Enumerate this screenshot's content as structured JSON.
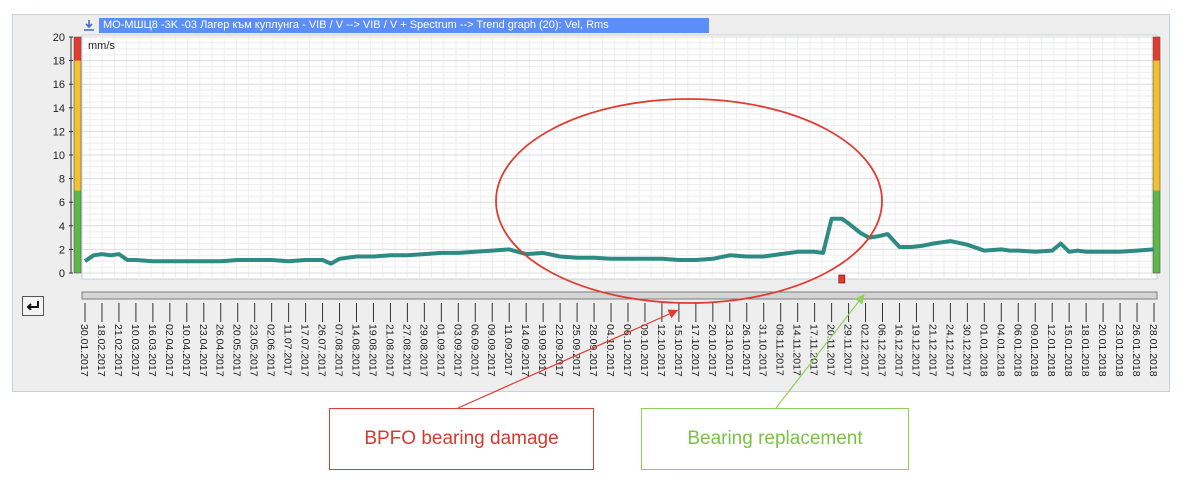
{
  "window": {
    "title": "MO-MШЦ8 -3K -03 Лагер към куплунга - VIB / V --> VIB / V + Spectrum --> Trend graph (20): Vel, Rms"
  },
  "icons": {
    "download": "download-icon",
    "back": "undo-arrow-icon"
  },
  "colors": {
    "series": "#2e8b84",
    "alarm_red": "#e43a2e",
    "alarm_yellow": "#f2c12e",
    "alarm_green": "#5cb849",
    "ellipse": "#e03c31",
    "bpfo_arrow": "#e03c31",
    "replacement_arrow": "#8fd058",
    "marker": "#e43a2e"
  },
  "annotations": {
    "bpfo": "BPFO bearing damage",
    "replacement": "Bearing replacement"
  },
  "chart_data": {
    "type": "line",
    "title": "",
    "xlabel": "",
    "ylabel": "mm/s",
    "ylim": [
      0,
      20
    ],
    "y_ticks": [
      0,
      2,
      4,
      6,
      8,
      10,
      12,
      14,
      16,
      18,
      20
    ],
    "grid": true,
    "alarm_levels": [
      {
        "color": "green",
        "from": 0,
        "to": 7
      },
      {
        "color": "yellow",
        "from": 7,
        "to": 18
      },
      {
        "color": "red",
        "from": 18,
        "to": 20
      }
    ],
    "x_tick_labels": [
      "30.01.2017",
      "18.02.2017",
      "21.02.2017",
      "10.03.2017",
      "16.03.2017",
      "02.04.2017",
      "10.04.2017",
      "23.04.2017",
      "26.04.2017",
      "20.05.2017",
      "23.05.2017",
      "02.06.2017",
      "11.07.2017",
      "17.07.2017",
      "26.07.2017",
      "07.08.2017",
      "14.08.2017",
      "19.08.2017",
      "21.08.2017",
      "27.08.2017",
      "29.08.2017",
      "01.09.2017",
      "03.09.2017",
      "06.09.2017",
      "09.09.2017",
      "11.09.2017",
      "14.09.2017",
      "19.09.2017",
      "22.09.2017",
      "25.09.2017",
      "28.09.2017",
      "04.10.2017",
      "06.10.2017",
      "09.10.2017",
      "12.10.2017",
      "15.10.2017",
      "17.10.2017",
      "20.10.2017",
      "23.10.2017",
      "26.10.2017",
      "31.10.2017",
      "08.11.2017",
      "14.11.2017",
      "17.11.2017",
      "20.11.2017",
      "29.11.2017",
      "02.12.2017",
      "06.12.2017",
      "16.12.2017",
      "19.12.2017",
      "21.12.2017",
      "24.12.2017",
      "30.12.2017",
      "01.01.2018",
      "04.01.2018",
      "06.01.2018",
      "09.01.2018",
      "12.01.2018",
      "15.01.2018",
      "18.01.2018",
      "20.01.2018",
      "23.01.2018",
      "26.01.2018",
      "28.01.2018"
    ],
    "series": [
      {
        "x_index": [
          0,
          0.5,
          1,
          1.5,
          2,
          2.5,
          3,
          4,
          5,
          6,
          7,
          8,
          9,
          10,
          11,
          12,
          13,
          14,
          14.5,
          15,
          16,
          17,
          18,
          19,
          20,
          21,
          22,
          23,
          24,
          25,
          26,
          27,
          28,
          29,
          30,
          31,
          32,
          33,
          34,
          35,
          36,
          37,
          38,
          39,
          40,
          41,
          42,
          43,
          43.5,
          44,
          44.6,
          45,
          45.7,
          46.2,
          46.7,
          47.3,
          48,
          48.7,
          49.3,
          50,
          51,
          52,
          53,
          54,
          54.5,
          55,
          56,
          57,
          57.5,
          58,
          58.5,
          59,
          60,
          61,
          62,
          63
        ],
        "values": [
          1.0,
          1.5,
          1.6,
          1.5,
          1.6,
          1.1,
          1.1,
          1.0,
          1.0,
          1.0,
          1.0,
          1.0,
          1.1,
          1.1,
          1.1,
          1.0,
          1.1,
          1.1,
          0.8,
          1.2,
          1.4,
          1.4,
          1.5,
          1.5,
          1.6,
          1.7,
          1.7,
          1.8,
          1.9,
          2.0,
          1.6,
          1.7,
          1.4,
          1.3,
          1.3,
          1.2,
          1.2,
          1.2,
          1.2,
          1.1,
          1.1,
          1.2,
          1.5,
          1.4,
          1.4,
          1.6,
          1.8,
          1.8,
          1.7,
          4.6,
          4.6,
          4.2,
          3.4,
          3.0,
          3.1,
          3.3,
          2.2,
          2.2,
          2.3,
          2.5,
          2.7,
          2.4,
          1.9,
          2.0,
          1.9,
          1.9,
          1.8,
          1.9,
          2.5,
          1.8,
          1.9,
          1.8,
          1.8,
          1.8,
          1.9,
          2.0
        ]
      }
    ]
  }
}
